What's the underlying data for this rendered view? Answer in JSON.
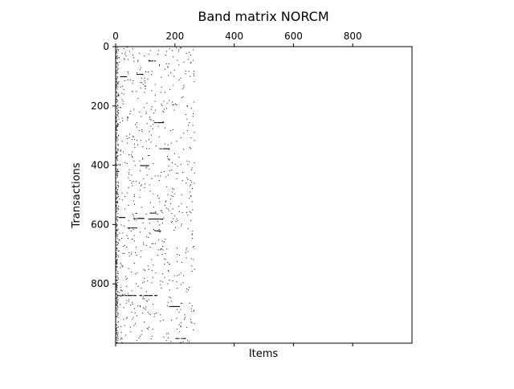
{
  "chart_data": {
    "type": "heatmap",
    "title": "Band matrix NORCM",
    "xlabel": "Items",
    "ylabel": "Transactions",
    "xlim": [
      0,
      1000
    ],
    "ylim": [
      1000,
      0
    ],
    "x_ticks": [
      0,
      200,
      400,
      600,
      800
    ],
    "x_tick_labels": [
      "0",
      "200",
      "400",
      "600",
      "800"
    ],
    "bottom_ticks": [
      0,
      400,
      600,
      800
    ],
    "y_ticks": [
      0,
      200,
      400,
      600,
      800
    ],
    "y_tick_labels": [
      "0",
      "200",
      "400",
      "600",
      "800"
    ],
    "x_axis_position": "top",
    "grid": false,
    "colors": {
      "filled": "#000000",
      "empty": "#ffffff"
    },
    "band": {
      "rows": 1000,
      "columns_used": 265,
      "dense_column": [
        0,
        8
      ],
      "description_density": "sparse binary entries concentrated in columns 0-265"
    },
    "dense_row_segments": [
      {
        "row": 47,
        "col_start": 110,
        "col_end": 135
      },
      {
        "row": 92,
        "col_start": 70,
        "col_end": 90
      },
      {
        "row": 100,
        "col_start": 15,
        "col_end": 35
      },
      {
        "row": 255,
        "col_start": 130,
        "col_end": 160
      },
      {
        "row": 343,
        "col_start": 145,
        "col_end": 180
      },
      {
        "row": 400,
        "col_start": 80,
        "col_end": 110
      },
      {
        "row": 560,
        "col_start": 115,
        "col_end": 135
      },
      {
        "row": 575,
        "col_start": 10,
        "col_end": 30
      },
      {
        "row": 578,
        "col_start": 60,
        "col_end": 95
      },
      {
        "row": 580,
        "col_start": 110,
        "col_end": 160
      },
      {
        "row": 610,
        "col_start": 40,
        "col_end": 70
      },
      {
        "row": 620,
        "col_start": 130,
        "col_end": 150
      },
      {
        "row": 838,
        "col_start": 5,
        "col_end": 70
      },
      {
        "row": 838,
        "col_start": 80,
        "col_end": 140
      },
      {
        "row": 875,
        "col_start": 180,
        "col_end": 215
      },
      {
        "row": 983,
        "col_start": 200,
        "col_end": 235
      }
    ]
  }
}
